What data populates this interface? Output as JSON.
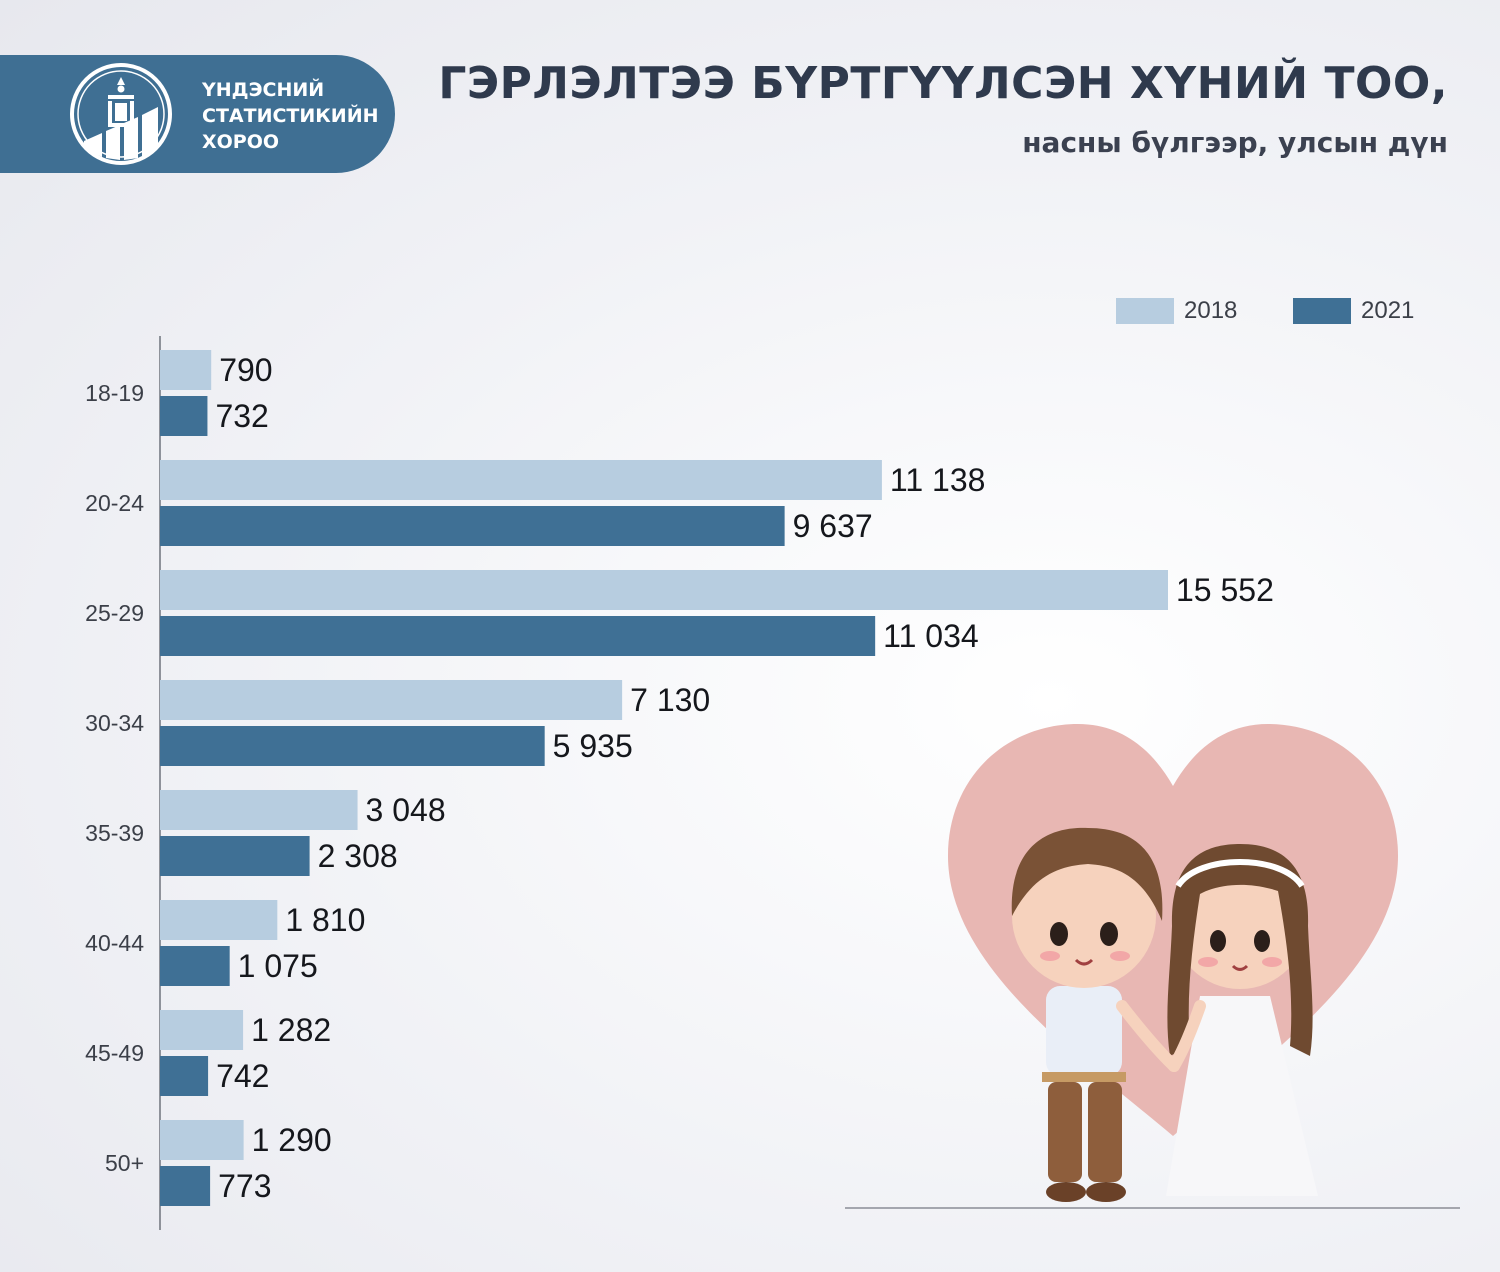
{
  "logo": {
    "lines": [
      "ҮНДЭСНИЙ",
      "СТАТИСТИКИЙН",
      "ХОРОО"
    ]
  },
  "header": {
    "title": "ГЭРЛЭЛТЭЭ БҮРТГҮҮЛСЭН ХҮНИЙ ТОО,",
    "subtitle": "насны бүлгээр, улсын дүн"
  },
  "colors": {
    "series_2018": "#b7cde0",
    "series_2021": "#3f7095",
    "brand": "#3f6f93",
    "heart": "#e8b7b3"
  },
  "illustration": {
    "icon": "wedding-couple-heart-icon"
  },
  "chart_data": {
    "type": "bar",
    "orientation": "horizontal",
    "categories": [
      "18-19",
      "20-24",
      "25-29",
      "30-34",
      "35-39",
      "40-44",
      "45-49",
      "50+"
    ],
    "series": [
      {
        "name": "2018",
        "values": [
          790,
          11138,
          15552,
          7130,
          3048,
          1810,
          1282,
          1290
        ],
        "labels": [
          "790",
          "11 138",
          "15 552",
          "7 130",
          "3 048",
          "1 810",
          "1 282",
          "1 290"
        ]
      },
      {
        "name": "2021",
        "values": [
          732,
          9637,
          11034,
          5935,
          2308,
          1075,
          742,
          773
        ],
        "labels": [
          "732",
          "9 637",
          "11 034",
          "5 935",
          "2 308",
          "1 075",
          "742",
          "773"
        ]
      }
    ],
    "title": "ГЭРЛЭЛТЭЭ БҮРТГҮҮЛСЭН ХҮНИЙ ТОО,",
    "subtitle": "насны бүлгээр, улсын дүн",
    "xlabel": "",
    "ylabel": "",
    "legend": "top-right",
    "grid": false
  }
}
